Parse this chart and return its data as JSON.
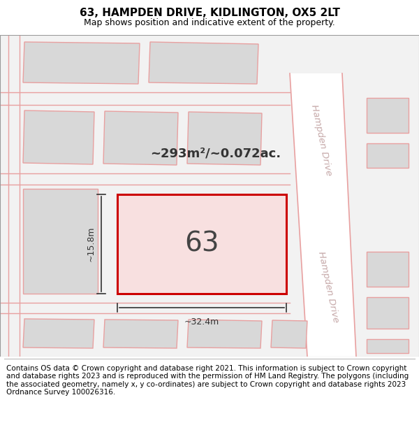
{
  "title_line1": "63, HAMPDEN DRIVE, KIDLINGTON, OX5 2LT",
  "title_line2": "Map shows position and indicative extent of the property.",
  "footer_text": "Contains OS data © Crown copyright and database right 2021. This information is subject to Crown copyright and database rights 2023 and is reproduced with the permission of HM Land Registry. The polygons (including the associated geometry, namely x, y co-ordinates) are subject to Crown copyright and database rights 2023 Ordnance Survey 100026316.",
  "area_text": "~293m²/~0.072ac.",
  "property_number": "63",
  "width_label": "~32.4m",
  "height_label": "~15.8m",
  "bg_color": "#ffffff",
  "map_bg_color": "#f2f2f2",
  "plot_line_color": "#cc0000",
  "property_outline_color": "#cc0000",
  "building_fill_color": "#d8d8d8",
  "building_edge_color": "#e8a0a0",
  "road_line_color": "#e8a0a0",
  "street_label": "Hampden Drive",
  "title_fontsize": 11,
  "subtitle_fontsize": 9,
  "footer_fontsize": 7.5
}
